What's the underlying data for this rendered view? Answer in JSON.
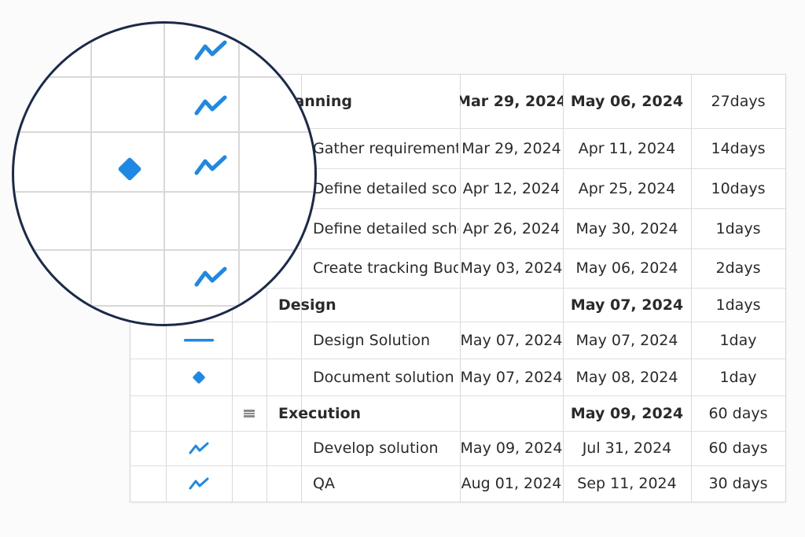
{
  "colors": {
    "accent": "#1e88e5",
    "grid": "#d9d9d9",
    "text": "#2a2a2a",
    "lens_border": "#1b2a4a"
  },
  "rows": [
    {
      "kind": "summary",
      "name": "Planning",
      "start": "Mar 29, 2024",
      "finish": "May 06, 2024",
      "duration": "27days",
      "icon": "none",
      "indent": 1
    },
    {
      "kind": "task",
      "name": "Gather requirements",
      "start": "Mar 29, 2024",
      "finish": "Apr 11, 2024",
      "duration": "14days",
      "icon": "none",
      "indent": 2
    },
    {
      "kind": "task",
      "name": "Define detailed scope",
      "start": "Apr 12, 2024",
      "finish": "Apr 25, 2024",
      "duration": "10days",
      "icon": "none",
      "indent": 2
    },
    {
      "kind": "task",
      "name": "Define detailed schedule",
      "start": "Apr 26, 2024",
      "finish": "May 30, 2024",
      "duration": "1days",
      "icon": "none",
      "indent": 2
    },
    {
      "kind": "task",
      "name": "Create tracking Budget",
      "start": "May 03, 2024",
      "finish": "May 06, 2024",
      "duration": "2days",
      "icon": "none",
      "indent": 2
    },
    {
      "kind": "summary",
      "name": "Design",
      "start": "",
      "finish": "May 07, 2024",
      "duration": "1days",
      "icon": "none",
      "indent": 1
    },
    {
      "kind": "task",
      "name": "Design Solution",
      "start": "May 07, 2024",
      "finish": "May 07, 2024",
      "duration": "1day",
      "icon": "dash-icon",
      "indent": 2
    },
    {
      "kind": "task",
      "name": "Document solution",
      "start": "May 07, 2024",
      "finish": "May 08, 2024",
      "duration": "1day",
      "icon": "milestone-diamond-icon",
      "indent": 2
    },
    {
      "kind": "summary",
      "name": "Execution",
      "start": "",
      "finish": "May 09, 2024",
      "duration": "60 days",
      "icon": "summary-bar-icon",
      "indent": 1
    },
    {
      "kind": "task",
      "name": "Develop solution",
      "start": "May 09, 2024",
      "finish": "Jul 31, 2024",
      "duration": "60 days",
      "icon": "zigzag-icon",
      "indent": 2
    },
    {
      "kind": "task",
      "name": "QA",
      "start": "Aug 01, 2024",
      "finish": "Sep 11, 2024",
      "duration": "30 days",
      "icon": "zigzag-icon",
      "indent": 2
    }
  ],
  "magnifier": {
    "icons": [
      "zigzag-icon",
      "zigzag-icon",
      "milestone-diamond-icon",
      "zigzag-icon",
      "zigzag-icon"
    ]
  }
}
